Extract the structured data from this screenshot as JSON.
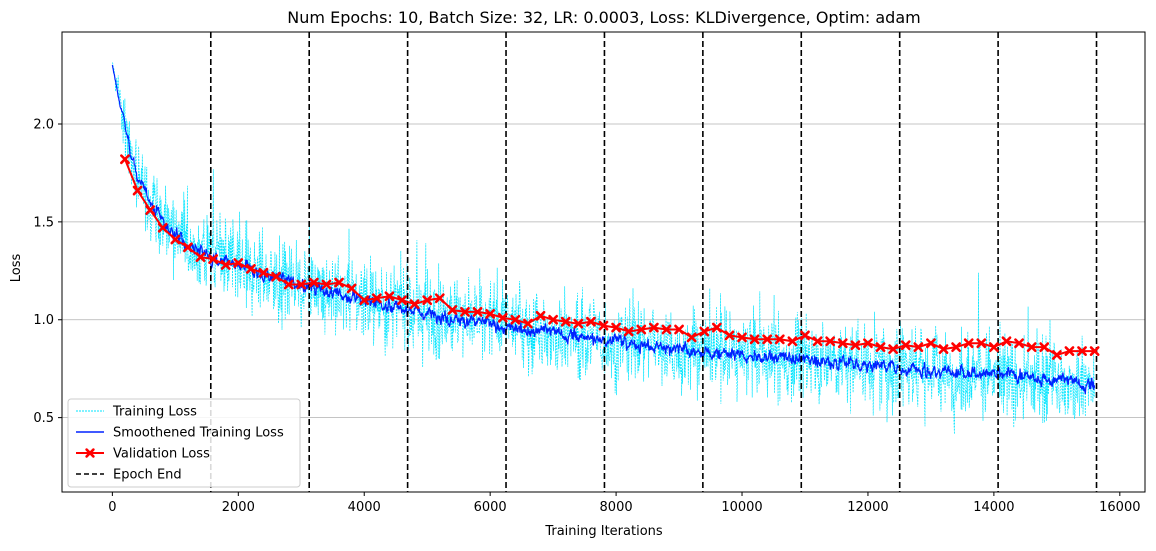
{
  "chart_data": {
    "type": "line",
    "title": "Num Epochs: 10, Batch Size: 32, LR: 0.0003, Loss: KLDivergence, Optim: adam",
    "xlabel": "Training Iterations",
    "ylabel": "Loss",
    "xlim": [
      -800,
      16400
    ],
    "ylim": [
      0.12,
      2.47
    ],
    "xticks": [
      0,
      2000,
      4000,
      6000,
      8000,
      10000,
      12000,
      14000,
      16000
    ],
    "xtick_labels": [
      "0",
      "2000",
      "4000",
      "6000",
      "8000",
      "10000",
      "12000",
      "14000",
      "16000"
    ],
    "yticks": [
      0.5,
      1.0,
      1.5,
      2.0
    ],
    "ytick_labels": [
      "0.5",
      "1.0",
      "1.5",
      "2.0"
    ],
    "grid": "horizontal",
    "legend_position": "lower-left",
    "legend": [
      {
        "label": "Training Loss",
        "color": "#00e5ff",
        "style": "dashed-thin"
      },
      {
        "label": "Smoothened Training Loss",
        "color": "#0022ff",
        "style": "solid"
      },
      {
        "label": "Validation Loss",
        "color": "#ff0000",
        "style": "solid-x-marker"
      },
      {
        "label": "Epoch End",
        "color": "#000000",
        "style": "dashed"
      }
    ],
    "epoch_ends": [
      1563,
      3126,
      4689,
      6252,
      7815,
      9378,
      10941,
      12504,
      14067,
      15630
    ],
    "validation": {
      "x": [
        200,
        400,
        600,
        800,
        1000,
        1200,
        1400,
        1600,
        1800,
        2000,
        2200,
        2400,
        2600,
        2800,
        3000,
        3200,
        3400,
        3600,
        3800,
        4000,
        4200,
        4400,
        4600,
        4800,
        5000,
        5200,
        5400,
        5600,
        5800,
        6000,
        6200,
        6400,
        6600,
        6800,
        7000,
        7200,
        7400,
        7600,
        7800,
        8000,
        8200,
        8400,
        8600,
        8800,
        9000,
        9200,
        9400,
        9600,
        9800,
        10000,
        10200,
        10400,
        10600,
        10800,
        11000,
        11200,
        11400,
        11600,
        11800,
        12000,
        12200,
        12400,
        12600,
        12800,
        13000,
        13200,
        13400,
        13600,
        13800,
        14000,
        14200,
        14400,
        14600,
        14800,
        15000,
        15200,
        15400,
        15600
      ],
      "y": [
        1.82,
        1.66,
        1.56,
        1.47,
        1.41,
        1.37,
        1.32,
        1.31,
        1.28,
        1.29,
        1.26,
        1.24,
        1.22,
        1.18,
        1.18,
        1.19,
        1.18,
        1.19,
        1.16,
        1.1,
        1.11,
        1.12,
        1.1,
        1.08,
        1.1,
        1.11,
        1.05,
        1.04,
        1.04,
        1.03,
        1.01,
        1.0,
        0.98,
        1.02,
        1.0,
        0.99,
        0.98,
        0.99,
        0.97,
        0.96,
        0.94,
        0.95,
        0.96,
        0.95,
        0.95,
        0.91,
        0.94,
        0.96,
        0.92,
        0.91,
        0.9,
        0.9,
        0.9,
        0.89,
        0.92,
        0.89,
        0.89,
        0.88,
        0.87,
        0.88,
        0.86,
        0.85,
        0.87,
        0.86,
        0.88,
        0.85,
        0.86,
        0.88,
        0.88,
        0.86,
        0.89,
        0.88,
        0.86,
        0.86,
        0.82,
        0.84,
        0.84,
        0.84
      ]
    },
    "training_envelope": {
      "x": [
        0,
        200,
        400,
        800,
        1200,
        1600,
        2000,
        3000,
        4000,
        5000,
        6000,
        7000,
        8000,
        9000,
        10000,
        11000,
        12000,
        13000,
        14000,
        15000,
        15600
      ],
      "smoothed_y": [
        2.3,
        1.98,
        1.72,
        1.5,
        1.38,
        1.32,
        1.27,
        1.18,
        1.1,
        1.03,
        0.98,
        0.93,
        0.89,
        0.85,
        0.82,
        0.8,
        0.77,
        0.74,
        0.72,
        0.69,
        0.66
      ],
      "spread": [
        0.05,
        0.3,
        0.33,
        0.36,
        0.38,
        0.39,
        0.4,
        0.4,
        0.4,
        0.4,
        0.4,
        0.4,
        0.4,
        0.4,
        0.4,
        0.4,
        0.4,
        0.4,
        0.4,
        0.4,
        0.4
      ]
    }
  }
}
